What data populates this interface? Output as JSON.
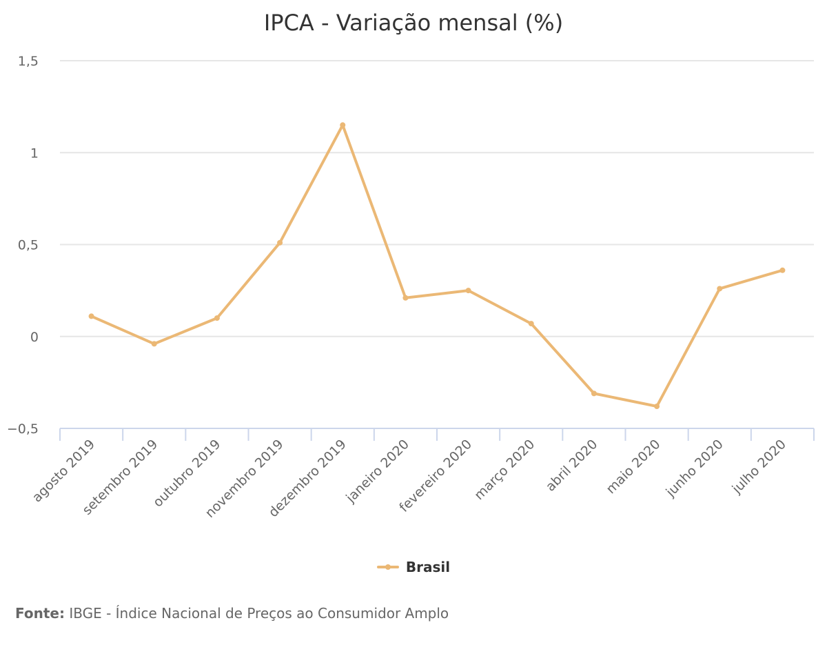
{
  "chart_data": {
    "type": "line",
    "title": "IPCA - Variação mensal (%)",
    "xlabel": "",
    "ylabel": "",
    "categories": [
      "agosto 2019",
      "setembro 2019",
      "outubro 2019",
      "novembro 2019",
      "dezembro 2019",
      "janeiro 2020",
      "fevereiro 2020",
      "março 2020",
      "abril 2020",
      "maio 2020",
      "junho 2020",
      "julho 2020"
    ],
    "series": [
      {
        "name": "Brasil",
        "color": "#EBB875",
        "values": [
          0.11,
          -0.04,
          0.1,
          0.51,
          1.15,
          0.21,
          0.25,
          0.07,
          -0.31,
          -0.38,
          0.26,
          0.36
        ]
      }
    ],
    "ylim": [
      -0.5,
      1.5
    ],
    "yticks": [
      1.5,
      1,
      0.5,
      0,
      -0.5
    ],
    "ytick_labels": [
      "1,5",
      "1",
      "0,5",
      "0",
      "−0,5"
    ],
    "grid": true,
    "legend_position": "bottom-center"
  },
  "credits": {
    "label": "Fonte:",
    "text": "IBGE - Índice Nacional de Preços ao Consumidor Amplo"
  },
  "colors": {
    "series": "#EBB875",
    "grid": "#e6e6e6",
    "axis": "#ccd6eb",
    "text": "#666666",
    "title": "#333333"
  }
}
